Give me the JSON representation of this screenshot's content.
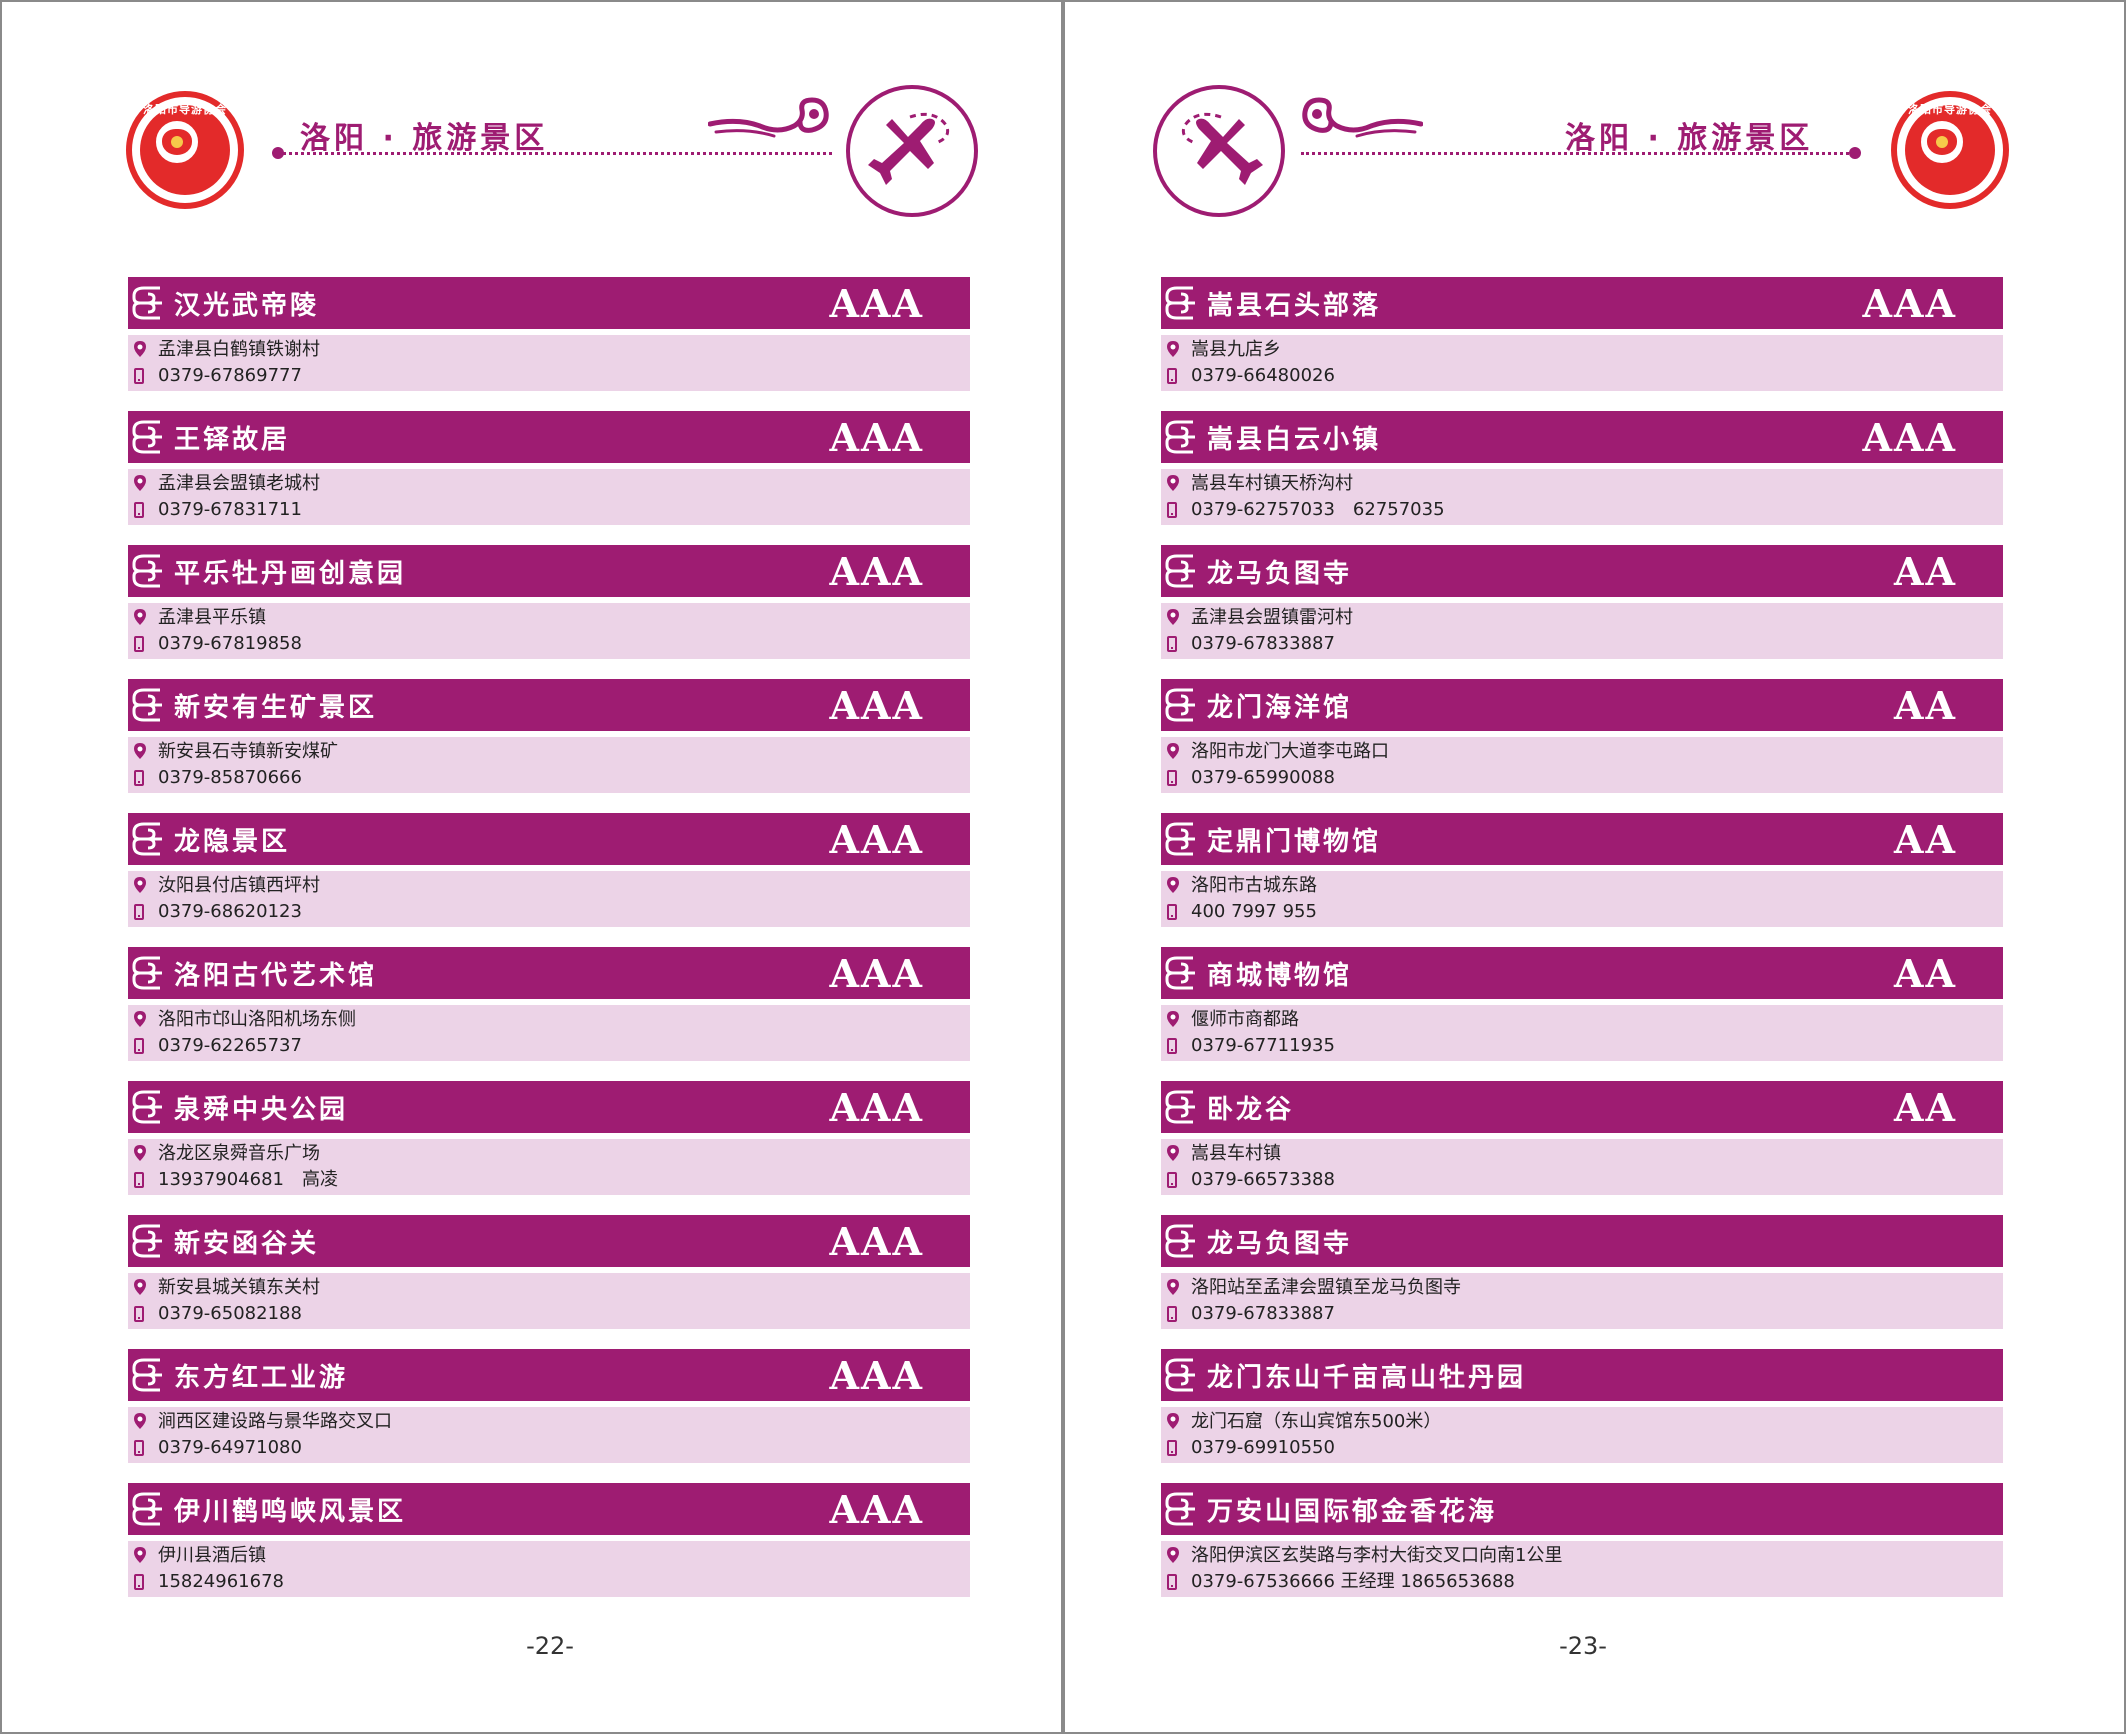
{
  "colors": {
    "accent": "#9e1c72",
    "info_bg": "#ecd3e7",
    "logo_red": "#e32a2a"
  },
  "header": {
    "title": "洛阳 · 旅游景区",
    "logo_text": "洛阳市导游协会",
    "logo_icon": "flower-emblem-icon",
    "badge_icon": "airplane-icon",
    "ornament_icon": "cloud-ornament-icon"
  },
  "pages": [
    {
      "page_number": "-22-",
      "entries": [
        {
          "name": "汉光武帝陵",
          "rating": "AAA",
          "address": "孟津县白鹤镇铁谢村",
          "phone": "0379-67869777"
        },
        {
          "name": "王铎故居",
          "rating": "AAA",
          "address": "孟津县会盟镇老城村",
          "phone": "0379-67831711"
        },
        {
          "name": "平乐牡丹画创意园",
          "rating": "AAA",
          "address": "孟津县平乐镇",
          "phone": "0379-67819858"
        },
        {
          "name": "新安有生矿景区",
          "rating": "AAA",
          "address": "新安县石寺镇新安煤矿",
          "phone": "0379-85870666"
        },
        {
          "name": "龙隐景区",
          "rating": "AAA",
          "address": "汝阳县付店镇西坪村",
          "phone": "0379-68620123"
        },
        {
          "name": "洛阳古代艺术馆",
          "rating": "AAA",
          "address": "洛阳市邙山洛阳机场东侧",
          "phone": "0379-62265737"
        },
        {
          "name": "泉舜中央公园",
          "rating": "AAA",
          "address": "洛龙区泉舜音乐广场",
          "phone": "13937904681　高凌"
        },
        {
          "name": "新安函谷关",
          "rating": "AAA",
          "address": "新安县城关镇东关村",
          "phone": "0379-65082188"
        },
        {
          "name": "东方红工业游",
          "rating": "AAA",
          "address": "涧西区建设路与景华路交叉口",
          "phone": "0379-64971080"
        },
        {
          "name": "伊川鹤鸣峡风景区",
          "rating": "AAA",
          "address": "伊川县酒后镇",
          "phone": "15824961678"
        }
      ]
    },
    {
      "page_number": "-23-",
      "entries": [
        {
          "name": "嵩县石头部落",
          "rating": "AAA",
          "address": "嵩县九店乡",
          "phone": "0379-66480026"
        },
        {
          "name": "嵩县白云小镇",
          "rating": "AAA",
          "address": "嵩县车村镇天桥沟村",
          "phone": "0379-62757033　62757035"
        },
        {
          "name": "龙马负图寺",
          "rating": "AA",
          "address": "孟津县会盟镇雷河村",
          "phone": "0379-67833887"
        },
        {
          "name": "龙门海洋馆",
          "rating": "AA",
          "address": "洛阳市龙门大道李屯路口",
          "phone": "0379-65990088"
        },
        {
          "name": "定鼎门博物馆",
          "rating": "AA",
          "address": "洛阳市古城东路",
          "phone": "400 7997 955"
        },
        {
          "name": "商城博物馆",
          "rating": "AA",
          "address": "偃师市商都路",
          "phone": "0379-67711935"
        },
        {
          "name": "卧龙谷",
          "rating": "AA",
          "address": "嵩县车村镇",
          "phone": "0379-66573388"
        },
        {
          "name": "龙马负图寺",
          "rating": "",
          "address": "洛阳站至孟津会盟镇至龙马负图寺",
          "phone": "0379-67833887"
        },
        {
          "name": "龙门东山千亩高山牡丹园",
          "rating": "",
          "address": "龙门石窟（东山宾馆东500米）",
          "phone": " 0379-69910550"
        },
        {
          "name": "万安山国际郁金香花海",
          "rating": "",
          "address": "洛阳伊滨区玄奘路与李村大街交叉口向南1公里",
          "phone": " 0379-67536666 王经理 1865653688"
        }
      ]
    }
  ]
}
